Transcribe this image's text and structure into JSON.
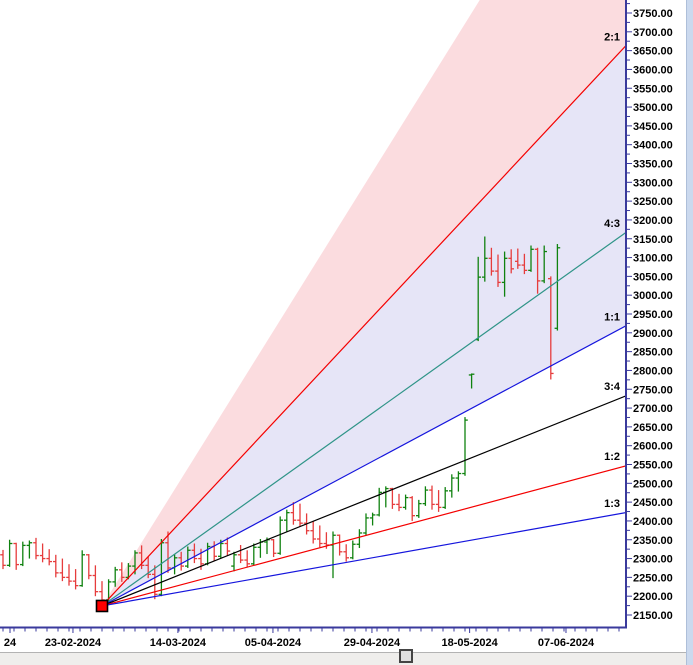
{
  "colors": {
    "axis": "#3a3a9c",
    "label_text": "#000000",
    "plot_background": "#ffffff",
    "window_right_strip": "#cbd9ee",
    "bottom_bar": "#efeeec"
  },
  "chrome": {
    "right_strip": "window-edge",
    "bottom_bar": "horizontal-scroll-area",
    "bottom_handle": "scroll-thumb"
  },
  "chart_data": {
    "type": "bar",
    "subtype": "ohlc_bars_with_speed_resistance_fan",
    "title": "",
    "grid": false,
    "legend": false,
    "y_axis": {
      "side": "right",
      "min": 2150,
      "max": 3800,
      "tick_step": 50,
      "minor_step": 25,
      "format": "2_decimals",
      "first_visible_label": "3750.00",
      "last_visible_label": "2150.00"
    },
    "x_axis": {
      "labels": [
        {
          "text": "24",
          "bar_index": 1.06
        },
        {
          "text": "23-02-2024",
          "bar_index": 10.6
        },
        {
          "text": "14-03-2024",
          "bar_index": 26.5
        },
        {
          "text": "05-04-2024",
          "bar_index": 40.9
        },
        {
          "text": "29-04-2024",
          "bar_index": 55.9
        },
        {
          "text": "18-05-2024",
          "bar_index": 70.7
        },
        {
          "text": "07-06-2024",
          "bar_index": 85.3
        }
      ]
    },
    "fan": {
      "origin_price": 2174,
      "origin_bar_index": 15,
      "price_per_bar_1to1": 9.38,
      "marker": {
        "shape": "square",
        "fill": "#ff0000",
        "stroke": "#000000",
        "size": 11
      },
      "lines": [
        {
          "label": "2:1",
          "ratio": 2.0,
          "color": "#f40000"
        },
        {
          "label": "4:3",
          "ratio": 1.3333,
          "color": "#2f9488"
        },
        {
          "label": "1:1",
          "ratio": 1.0,
          "color": "#1515dd"
        },
        {
          "label": "3:4",
          "ratio": 0.75,
          "color": "#000000"
        },
        {
          "label": "1:2",
          "ratio": 0.5,
          "color": "#f40000"
        },
        {
          "label": "1:3",
          "ratio": 0.3333,
          "color": "#1515dd"
        }
      ],
      "bands": [
        {
          "from_ratio": 3.0,
          "to_ratio": 2.0,
          "color": "#fbdcdf"
        },
        {
          "from_ratio": 2.0,
          "to_ratio": 1.0,
          "color": "#e6e5f7"
        }
      ]
    },
    "bar_format": [
      "open",
      "high",
      "low",
      "close"
    ],
    "up_color": "#0f820f",
    "down_color": "#e63c3c",
    "bars": [
      [
        2310,
        2323,
        2272,
        2282
      ],
      [
        2282,
        2350,
        2278,
        2340
      ],
      [
        2340,
        2342,
        2270,
        2284
      ],
      [
        2284,
        2345,
        2280,
        2335
      ],
      [
        2335,
        2348,
        2300,
        2342
      ],
      [
        2342,
        2355,
        2298,
        2308
      ],
      [
        2308,
        2340,
        2290,
        2300
      ],
      [
        2300,
        2325,
        2282,
        2292
      ],
      [
        2292,
        2310,
        2250,
        2262
      ],
      [
        2262,
        2300,
        2240,
        2250
      ],
      [
        2250,
        2285,
        2228,
        2240
      ],
      [
        2240,
        2272,
        2218,
        2228
      ],
      [
        2228,
        2322,
        2225,
        2310
      ],
      [
        2310,
        2312,
        2245,
        2255
      ],
      [
        2255,
        2282,
        2200,
        2212
      ],
      [
        2212,
        2240,
        2175,
        2190
      ],
      [
        2190,
        2245,
        2185,
        2238
      ],
      [
        2238,
        2278,
        2225,
        2270
      ],
      [
        2270,
        2290,
        2238,
        2250
      ],
      [
        2250,
        2288,
        2245,
        2280
      ],
      [
        2280,
        2322,
        2258,
        2315
      ],
      [
        2315,
        2335,
        2272,
        2282
      ],
      [
        2282,
        2305,
        2248,
        2258
      ],
      [
        2258,
        2282,
        2192,
        2205
      ],
      [
        2205,
        2352,
        2200,
        2342
      ],
      [
        2342,
        2372,
        2262,
        2275
      ],
      [
        2275,
        2312,
        2258,
        2302
      ],
      [
        2302,
        2318,
        2268,
        2280
      ],
      [
        2280,
        2332,
        2275,
        2322
      ],
      [
        2322,
        2340,
        2288,
        2300
      ],
      [
        2300,
        2326,
        2270,
        2286
      ],
      [
        2286,
        2342,
        2282,
        2332
      ],
      [
        2332,
        2346,
        2294,
        2306
      ],
      [
        2306,
        2350,
        2300,
        2340
      ],
      [
        2340,
        2356,
        2308,
        2320
      ],
      [
        2280,
        2318,
        2266,
        2310
      ],
      [
        2310,
        2336,
        2288,
        2296
      ],
      [
        2296,
        2322,
        2276,
        2286
      ],
      [
        2286,
        2340,
        2282,
        2330
      ],
      [
        2330,
        2352,
        2302,
        2344
      ],
      [
        2344,
        2356,
        2312,
        2350
      ],
      [
        2350,
        2352,
        2304,
        2314
      ],
      [
        2314,
        2412,
        2310,
        2402
      ],
      [
        2402,
        2430,
        2372,
        2422
      ],
      [
        2422,
        2450,
        2390,
        2402
      ],
      [
        2402,
        2446,
        2384,
        2394
      ],
      [
        2394,
        2420,
        2364,
        2374
      ],
      [
        2374,
        2400,
        2340,
        2352
      ],
      [
        2352,
        2388,
        2330,
        2340
      ],
      [
        2340,
        2370,
        2326,
        2336
      ],
      [
        2336,
        2372,
        2248,
        2362
      ],
      [
        2362,
        2364,
        2308,
        2318
      ],
      [
        2318,
        2338,
        2292,
        2302
      ],
      [
        2302,
        2348,
        2298,
        2338
      ],
      [
        2338,
        2378,
        2328,
        2368
      ],
      [
        2368,
        2420,
        2362,
        2408
      ],
      [
        2408,
        2422,
        2388,
        2416
      ],
      [
        2416,
        2488,
        2412,
        2476
      ],
      [
        2476,
        2492,
        2436,
        2486
      ],
      [
        2486,
        2488,
        2432,
        2444
      ],
      [
        2444,
        2472,
        2426,
        2436
      ],
      [
        2436,
        2470,
        2430,
        2462
      ],
      [
        2462,
        2466,
        2400,
        2414
      ],
      [
        2414,
        2456,
        2408,
        2446
      ],
      [
        2446,
        2492,
        2440,
        2482
      ],
      [
        2482,
        2494,
        2430,
        2444
      ],
      [
        2444,
        2482,
        2424,
        2436
      ],
      [
        2436,
        2490,
        2432,
        2480
      ],
      [
        2480,
        2524,
        2462,
        2514
      ],
      [
        2514,
        2532,
        2478,
        2526
      ],
      [
        2526,
        2676,
        2520,
        2668
      ],
      [
        2788,
        2792,
        2752,
        2790
      ],
      [
        2882,
        3102,
        2878,
        3048
      ],
      [
        3048,
        3156,
        3036,
        3098
      ],
      [
        3098,
        3126,
        3052,
        3064
      ],
      [
        3064,
        3108,
        3022,
        3034
      ],
      [
        3034,
        3116,
        2996,
        3098
      ],
      [
        3098,
        3122,
        3058,
        3070
      ],
      [
        3090,
        3124,
        3070,
        3080
      ],
      [
        3080,
        3110,
        3056,
        3066
      ],
      [
        3066,
        3132,
        3062,
        3122
      ],
      [
        3122,
        3126,
        3004,
        3038
      ],
      [
        3038,
        3132,
        3032,
        3116
      ],
      [
        3044,
        3050,
        2776,
        2792
      ],
      [
        2912,
        3136,
        2906,
        3126
      ]
    ]
  }
}
